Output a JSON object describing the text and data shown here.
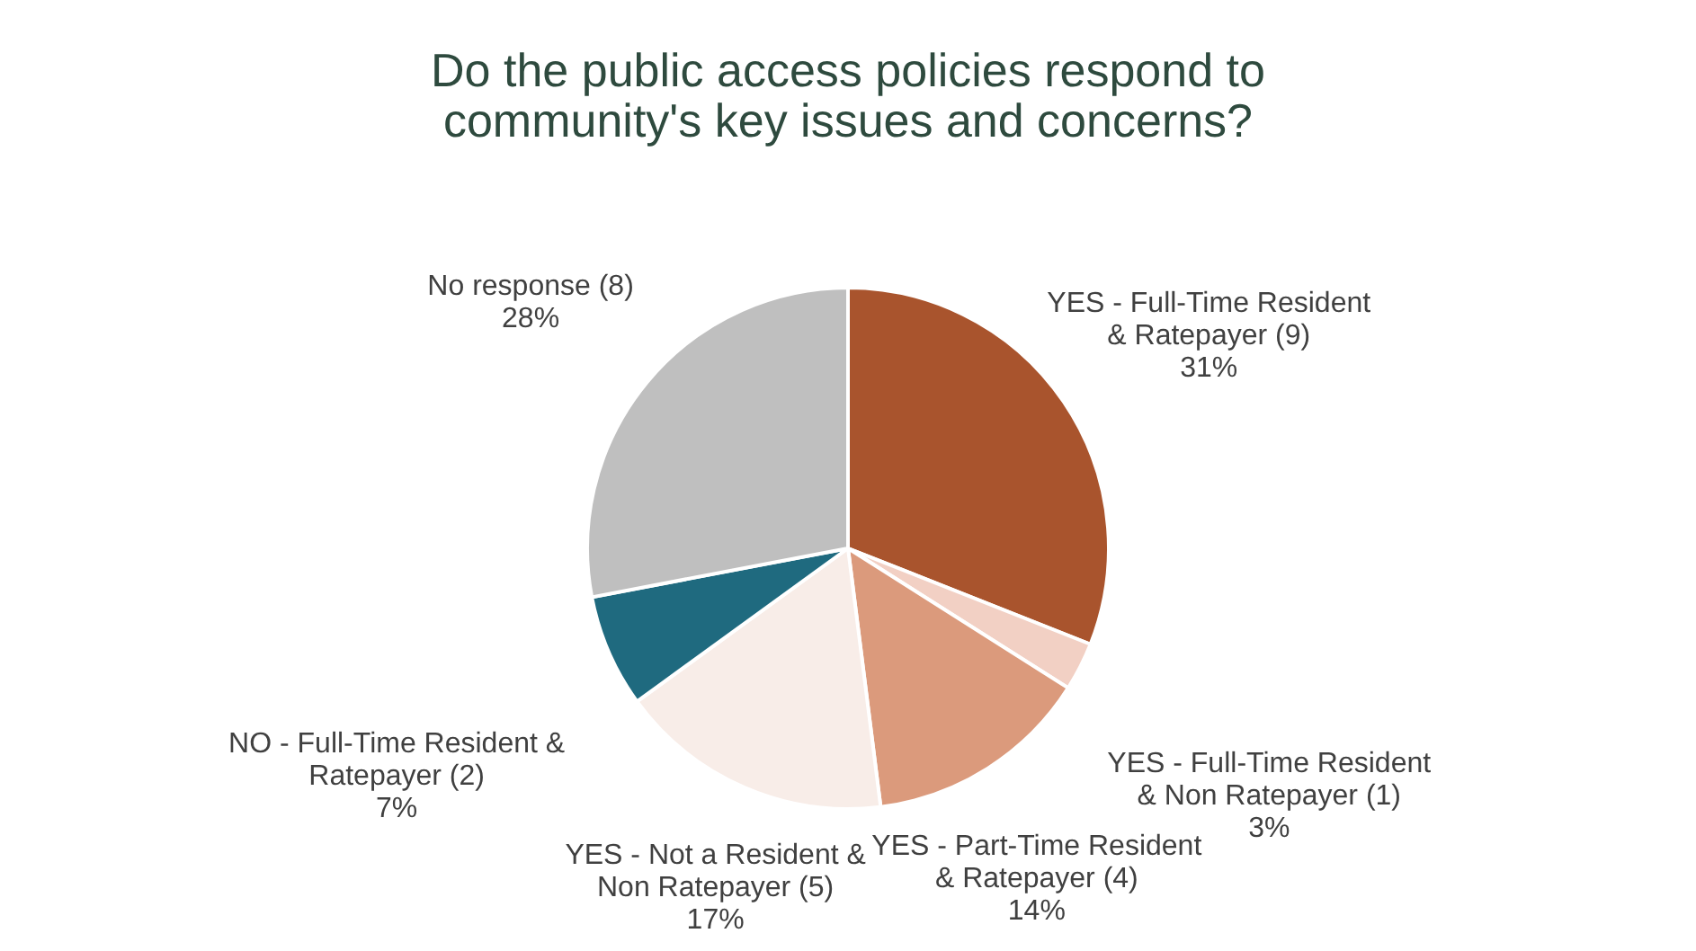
{
  "chart_data": {
    "type": "pie",
    "title": [
      "Do the public access policies respond to",
      "community's key issues and concerns?"
    ],
    "categories": [
      "YES - Full-Time Resident & Ratepayer (9)",
      "YES - Full-Time Resident & Non Ratepayer (1)",
      "YES - Part-Time Resident & Ratepayer (4)",
      "YES - Not a Resident & Non Ratepayer (5)",
      "NO - Full-Time Resident & Ratepayer (2)",
      "No response (8)"
    ],
    "values": [
      31,
      3,
      14,
      17,
      7,
      28
    ],
    "value_labels": [
      "31%",
      "3%",
      "14%",
      "17%",
      "7%",
      "28%"
    ],
    "colors": [
      "#a9542d",
      "#f2d0c4",
      "#db9a7c",
      "#f8ede8",
      "#1f6a7f",
      "#bfbfbf"
    ],
    "legend": false
  }
}
